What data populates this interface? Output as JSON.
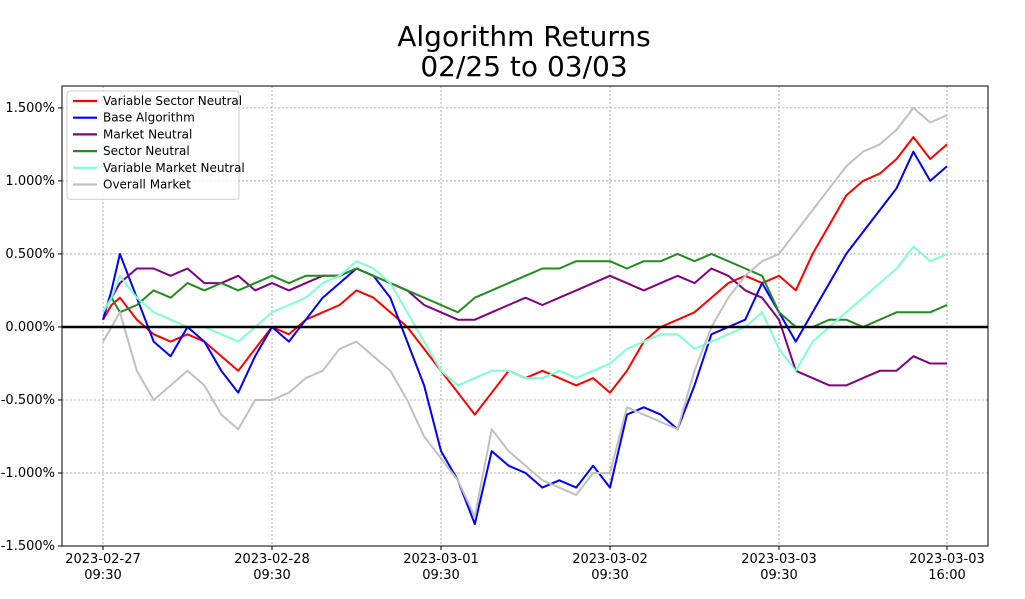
{
  "chart_data": {
    "type": "line",
    "title_line1": "Algorithm Returns",
    "title_line2": "02/25 to 03/03",
    "xlabel": "",
    "ylabel": "",
    "ylim": [
      -1.5,
      1.65
    ],
    "grid": true,
    "legend_position": "top-left",
    "y_ticks": [
      {
        "value": 1.5,
        "label": "1.500%"
      },
      {
        "value": 1.0,
        "label": "1.000%"
      },
      {
        "value": 0.5,
        "label": "0.500%"
      },
      {
        "value": 0.0,
        "label": "0.000%"
      },
      {
        "value": -0.5,
        "label": "-0.500%"
      },
      {
        "value": -1.0,
        "label": "-1.000%"
      },
      {
        "value": -1.5,
        "label": "-1.500%"
      }
    ],
    "x_ticks": [
      {
        "x": 0,
        "date": "2023-02-27",
        "time": "09:30"
      },
      {
        "x": 1,
        "date": "2023-02-28",
        "time": "09:30"
      },
      {
        "x": 2,
        "date": "2023-03-01",
        "time": "09:30"
      },
      {
        "x": 3,
        "date": "2023-03-02",
        "time": "09:30"
      },
      {
        "x": 4,
        "date": "2023-03-03",
        "time": "09:30"
      },
      {
        "x": 5,
        "date": "2023-03-03",
        "time": "16:00"
      }
    ],
    "zero_line": 0.0,
    "series": [
      {
        "name": "Variable Sector Neutral",
        "color": "#ff0000",
        "x": [
          0,
          0.05,
          0.1,
          0.2,
          0.3,
          0.4,
          0.5,
          0.6,
          0.7,
          0.8,
          0.9,
          1.0,
          1.1,
          1.2,
          1.3,
          1.4,
          1.5,
          1.6,
          1.7,
          1.8,
          1.9,
          2.0,
          2.1,
          2.2,
          2.3,
          2.4,
          2.5,
          2.6,
          2.7,
          2.8,
          2.9,
          3.0,
          3.1,
          3.2,
          3.3,
          3.4,
          3.5,
          3.6,
          3.7,
          3.8,
          3.9,
          4.0,
          4.1,
          4.2,
          4.3,
          4.4,
          4.5,
          4.6,
          4.7,
          4.8,
          4.9,
          5.0
        ],
        "values": [
          0.05,
          0.15,
          0.2,
          0.05,
          -0.05,
          -0.1,
          -0.05,
          -0.1,
          -0.2,
          -0.3,
          -0.15,
          0.0,
          -0.05,
          0.05,
          0.1,
          0.15,
          0.25,
          0.2,
          0.1,
          0.0,
          -0.15,
          -0.3,
          -0.45,
          -0.6,
          -0.45,
          -0.3,
          -0.35,
          -0.3,
          -0.35,
          -0.4,
          -0.35,
          -0.45,
          -0.3,
          -0.1,
          0.0,
          0.05,
          0.1,
          0.2,
          0.3,
          0.35,
          0.3,
          0.35,
          0.25,
          0.5,
          0.7,
          0.9,
          1.0,
          1.05,
          1.15,
          1.3,
          1.15,
          1.25
        ]
      },
      {
        "name": "Base Algorithm",
        "color": "#0000ff",
        "x": [
          0,
          0.05,
          0.1,
          0.2,
          0.3,
          0.4,
          0.5,
          0.6,
          0.7,
          0.8,
          0.9,
          1.0,
          1.1,
          1.2,
          1.3,
          1.4,
          1.5,
          1.6,
          1.7,
          1.8,
          1.9,
          2.0,
          2.1,
          2.2,
          2.3,
          2.4,
          2.5,
          2.6,
          2.7,
          2.8,
          2.9,
          3.0,
          3.1,
          3.2,
          3.3,
          3.4,
          3.5,
          3.6,
          3.7,
          3.8,
          3.9,
          4.0,
          4.1,
          4.2,
          4.3,
          4.4,
          4.5,
          4.6,
          4.7,
          4.8,
          4.9,
          5.0
        ],
        "values": [
          0.05,
          0.25,
          0.5,
          0.2,
          -0.1,
          -0.2,
          0.0,
          -0.1,
          -0.3,
          -0.45,
          -0.2,
          0.0,
          -0.1,
          0.05,
          0.2,
          0.3,
          0.4,
          0.35,
          0.2,
          -0.1,
          -0.4,
          -0.85,
          -1.05,
          -1.35,
          -0.85,
          -0.95,
          -1.0,
          -1.1,
          -1.05,
          -1.1,
          -0.95,
          -1.1,
          -0.6,
          -0.55,
          -0.6,
          -0.7,
          -0.4,
          -0.05,
          0.0,
          0.05,
          0.3,
          0.1,
          -0.1,
          0.1,
          0.3,
          0.5,
          0.65,
          0.8,
          0.95,
          1.2,
          1.0,
          1.1
        ]
      },
      {
        "name": "Market Neutral",
        "color": "#800080",
        "x": [
          0,
          0.05,
          0.1,
          0.2,
          0.3,
          0.4,
          0.5,
          0.6,
          0.7,
          0.8,
          0.9,
          1.0,
          1.1,
          1.2,
          1.3,
          1.4,
          1.5,
          1.6,
          1.7,
          1.8,
          1.9,
          2.0,
          2.1,
          2.2,
          2.3,
          2.4,
          2.5,
          2.6,
          2.7,
          2.8,
          2.9,
          3.0,
          3.1,
          3.2,
          3.3,
          3.4,
          3.5,
          3.6,
          3.7,
          3.8,
          3.9,
          4.0,
          4.1,
          4.2,
          4.3,
          4.4,
          4.5,
          4.6,
          4.7,
          4.8,
          4.9,
          5.0
        ],
        "values": [
          0.1,
          0.2,
          0.3,
          0.4,
          0.4,
          0.35,
          0.4,
          0.3,
          0.3,
          0.35,
          0.25,
          0.3,
          0.25,
          0.3,
          0.35,
          0.35,
          0.4,
          0.35,
          0.3,
          0.25,
          0.15,
          0.1,
          0.05,
          0.05,
          0.1,
          0.15,
          0.2,
          0.15,
          0.2,
          0.25,
          0.3,
          0.35,
          0.3,
          0.25,
          0.3,
          0.35,
          0.3,
          0.4,
          0.35,
          0.25,
          0.2,
          0.05,
          -0.3,
          -0.35,
          -0.4,
          -0.4,
          -0.35,
          -0.3,
          -0.3,
          -0.2,
          -0.25,
          -0.25
        ]
      },
      {
        "name": "Sector Neutral",
        "color": "#228b22",
        "x": [
          0,
          0.05,
          0.1,
          0.2,
          0.3,
          0.4,
          0.5,
          0.6,
          0.7,
          0.8,
          0.9,
          1.0,
          1.1,
          1.2,
          1.3,
          1.4,
          1.5,
          1.6,
          1.7,
          1.8,
          1.9,
          2.0,
          2.1,
          2.2,
          2.3,
          2.4,
          2.5,
          2.6,
          2.7,
          2.8,
          2.9,
          3.0,
          3.1,
          3.2,
          3.3,
          3.4,
          3.5,
          3.6,
          3.7,
          3.8,
          3.9,
          4.0,
          4.1,
          4.2,
          4.3,
          4.4,
          4.5,
          4.6,
          4.7,
          4.8,
          4.9,
          5.0
        ],
        "values": [
          0.1,
          0.2,
          0.1,
          0.15,
          0.25,
          0.2,
          0.3,
          0.25,
          0.3,
          0.25,
          0.3,
          0.35,
          0.3,
          0.35,
          0.35,
          0.35,
          0.4,
          0.35,
          0.3,
          0.25,
          0.2,
          0.15,
          0.1,
          0.2,
          0.25,
          0.3,
          0.35,
          0.4,
          0.4,
          0.45,
          0.45,
          0.45,
          0.4,
          0.45,
          0.45,
          0.5,
          0.45,
          0.5,
          0.45,
          0.4,
          0.35,
          0.1,
          0.0,
          0.0,
          0.05,
          0.05,
          0.0,
          0.05,
          0.1,
          0.1,
          0.1,
          0.15
        ]
      },
      {
        "name": "Variable Market Neutral",
        "color": "#7fffd4",
        "x": [
          0,
          0.05,
          0.1,
          0.2,
          0.3,
          0.4,
          0.5,
          0.6,
          0.7,
          0.8,
          0.9,
          1.0,
          1.1,
          1.2,
          1.3,
          1.4,
          1.5,
          1.6,
          1.7,
          1.8,
          1.9,
          2.0,
          2.1,
          2.2,
          2.3,
          2.4,
          2.5,
          2.6,
          2.7,
          2.8,
          2.9,
          3.0,
          3.1,
          3.2,
          3.3,
          3.4,
          3.5,
          3.6,
          3.7,
          3.8,
          3.9,
          4.0,
          4.1,
          4.2,
          4.3,
          4.4,
          4.5,
          4.6,
          4.7,
          4.8,
          4.9,
          5.0
        ],
        "values": [
          0.1,
          0.2,
          0.35,
          0.2,
          0.1,
          0.05,
          0.0,
          0.0,
          -0.05,
          -0.1,
          0.0,
          0.1,
          0.15,
          0.2,
          0.3,
          0.35,
          0.45,
          0.4,
          0.3,
          0.1,
          -0.1,
          -0.3,
          -0.4,
          -0.35,
          -0.3,
          -0.3,
          -0.35,
          -0.35,
          -0.3,
          -0.35,
          -0.3,
          -0.25,
          -0.15,
          -0.1,
          -0.05,
          -0.05,
          -0.15,
          -0.1,
          -0.05,
          0.0,
          0.1,
          -0.15,
          -0.3,
          -0.1,
          0.0,
          0.1,
          0.2,
          0.3,
          0.4,
          0.55,
          0.45,
          0.5
        ]
      },
      {
        "name": "Overall Market",
        "color": "#c0c0c0",
        "x": [
          0,
          0.05,
          0.1,
          0.2,
          0.3,
          0.4,
          0.5,
          0.6,
          0.7,
          0.8,
          0.9,
          1.0,
          1.1,
          1.2,
          1.3,
          1.4,
          1.5,
          1.6,
          1.7,
          1.8,
          1.9,
          2.0,
          2.1,
          2.2,
          2.3,
          2.4,
          2.5,
          2.6,
          2.7,
          2.8,
          2.9,
          3.0,
          3.1,
          3.2,
          3.3,
          3.4,
          3.5,
          3.6,
          3.7,
          3.8,
          3.9,
          4.0,
          4.1,
          4.2,
          4.3,
          4.4,
          4.5,
          4.6,
          4.7,
          4.8,
          4.9,
          5.0
        ],
        "values": [
          -0.1,
          0.0,
          0.1,
          -0.3,
          -0.5,
          -0.4,
          -0.3,
          -0.4,
          -0.6,
          -0.7,
          -0.5,
          -0.5,
          -0.45,
          -0.35,
          -0.3,
          -0.15,
          -0.1,
          -0.2,
          -0.3,
          -0.5,
          -0.75,
          -0.9,
          -1.05,
          -1.3,
          -0.7,
          -0.85,
          -0.95,
          -1.05,
          -1.1,
          -1.15,
          -1.0,
          -1.0,
          -0.55,
          -0.6,
          -0.65,
          -0.7,
          -0.3,
          0.0,
          0.2,
          0.35,
          0.45,
          0.5,
          0.65,
          0.8,
          0.95,
          1.1,
          1.2,
          1.25,
          1.35,
          1.5,
          1.4,
          1.45
        ]
      }
    ]
  }
}
